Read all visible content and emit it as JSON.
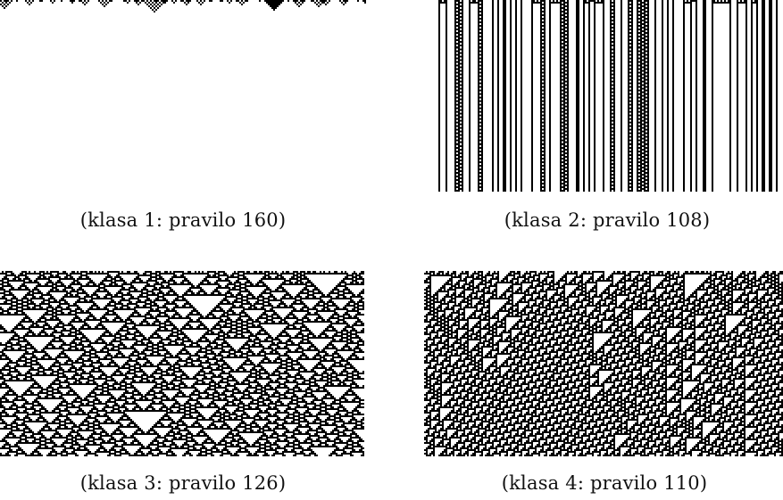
{
  "panels": [
    {
      "caption": "(klasa 1: pravilo 160)",
      "rule": 160,
      "class": 1
    },
    {
      "caption": "(klasa 2: pravilo 108)",
      "rule": 108,
      "class": 2
    },
    {
      "caption": "(klasa 3: pravilo 126)",
      "rule": 126,
      "class": 3
    },
    {
      "caption": "(klasa 4: pravilo 110)",
      "rule": 110,
      "class": 4
    }
  ],
  "colors": {
    "cell_on": "#000000",
    "cell_off": "#ffffff",
    "text": "#111111"
  }
}
